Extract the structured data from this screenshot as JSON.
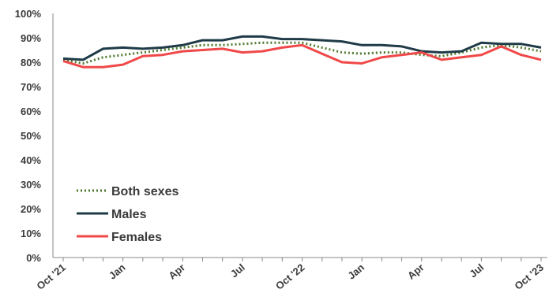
{
  "chart_data": {
    "type": "line",
    "x_labels": [
      "Oct '21",
      "",
      "",
      "Jan",
      "",
      "",
      "Apr",
      "",
      "",
      "Jul",
      "",
      "",
      "Oct '22",
      "",
      "",
      "Jan",
      "",
      "",
      "Apr",
      "",
      "",
      "Jul",
      "",
      "",
      "Oct '23"
    ],
    "y_ticks": [
      "0%",
      "10%",
      "20%",
      "30%",
      "40%",
      "50%",
      "60%",
      "70%",
      "80%",
      "90%",
      "100%"
    ],
    "ylim": [
      0,
      100
    ],
    "legend_position": "bottom-left",
    "series": [
      {
        "name": "Both sexes",
        "color": "#4e7a2c",
        "style": "dotted",
        "values": [
          81,
          79.5,
          82,
          83,
          84,
          85,
          86,
          87,
          87,
          87.5,
          88,
          88,
          88,
          86,
          84,
          83.5,
          84,
          84,
          83,
          82.5,
          84,
          86,
          87,
          86,
          84.5
        ]
      },
      {
        "name": "Males",
        "color": "#1f3b47",
        "style": "solid",
        "values": [
          81.5,
          81,
          85.5,
          86,
          85.5,
          86,
          87,
          89,
          89,
          90.5,
          90.5,
          89.5,
          89.5,
          89,
          88.5,
          87,
          87,
          86.5,
          84.5,
          84,
          84.5,
          88,
          87.5,
          87.5,
          86
        ]
      },
      {
        "name": "Females",
        "color": "#f04848",
        "style": "solid",
        "values": [
          80.5,
          78,
          78,
          79,
          82.5,
          83,
          84.5,
          85,
          85.5,
          84,
          84.5,
          86,
          87,
          83.5,
          80,
          79.5,
          82,
          83,
          84,
          81,
          82,
          83,
          86.5,
          83,
          81
        ]
      }
    ]
  }
}
